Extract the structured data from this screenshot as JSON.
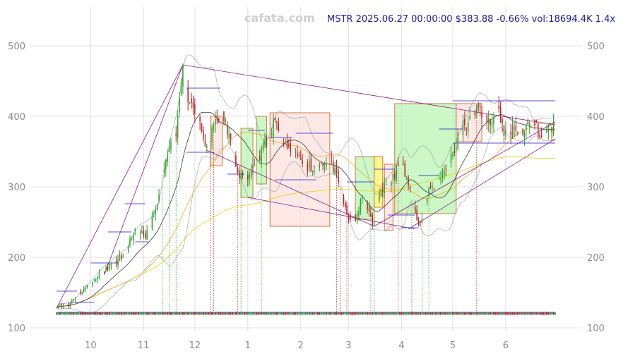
{
  "header": {
    "watermark": "cafata.com",
    "info": "MSTR 2025.06.27 00:00:00 $383.88 -0.66% vol:18694.4K 1.4x"
  },
  "colors": {
    "up": "#2ca02c",
    "down": "#b22222",
    "ma_fast": "#222222",
    "ma_mid": "#f5a623",
    "ma_slow": "#f0d000",
    "band": "#999999",
    "channel": "#8b1a8b",
    "level": "#1a1acc",
    "box_green": "#b9f5b3",
    "box_red": "#fbe0dc",
    "box_yellow": "#fff36a",
    "box_border": "#d07a3a",
    "grid": "#e0e0e0"
  },
  "chart_data": {
    "type": "candlestick",
    "ticker": "MSTR",
    "y_range": [
      95,
      555
    ],
    "y_ticks": [
      100,
      200,
      300,
      400,
      500
    ],
    "x_ticks": [
      {
        "label": "10",
        "day": 20
      },
      {
        "label": "11",
        "day": 51
      },
      {
        "label": "12",
        "day": 81
      },
      {
        "label": "1",
        "day": 112
      },
      {
        "label": "2",
        "day": 143
      },
      {
        "label": "3",
        "day": 171
      },
      {
        "label": "4",
        "day": 202
      },
      {
        "label": "5",
        "day": 232
      },
      {
        "label": "6",
        "day": 263
      }
    ],
    "day_range": [
      0,
      292
    ],
    "keypoints": [
      {
        "day": 0,
        "close": 128
      },
      {
        "day": 8,
        "close": 135
      },
      {
        "day": 16,
        "close": 155
      },
      {
        "day": 24,
        "close": 172
      },
      {
        "day": 32,
        "close": 190
      },
      {
        "day": 40,
        "close": 205
      },
      {
        "day": 46,
        "close": 240
      },
      {
        "day": 52,
        "close": 228
      },
      {
        "day": 58,
        "close": 268
      },
      {
        "day": 64,
        "close": 338
      },
      {
        "day": 70,
        "close": 372
      },
      {
        "day": 74,
        "close": 473
      },
      {
        "day": 77,
        "close": 420
      },
      {
        "day": 82,
        "close": 400
      },
      {
        "day": 88,
        "close": 358
      },
      {
        "day": 92,
        "close": 388
      },
      {
        "day": 97,
        "close": 402
      },
      {
        "day": 102,
        "close": 368
      },
      {
        "day": 106,
        "close": 320
      },
      {
        "day": 112,
        "close": 310
      },
      {
        "day": 118,
        "close": 338
      },
      {
        "day": 124,
        "close": 372
      },
      {
        "day": 128,
        "close": 395
      },
      {
        "day": 133,
        "close": 360
      },
      {
        "day": 139,
        "close": 345
      },
      {
        "day": 146,
        "close": 330
      },
      {
        "day": 153,
        "close": 326
      },
      {
        "day": 160,
        "close": 340
      },
      {
        "day": 166,
        "close": 300
      },
      {
        "day": 170,
        "close": 262
      },
      {
        "day": 175,
        "close": 252
      },
      {
        "day": 180,
        "close": 292
      },
      {
        "day": 185,
        "close": 246
      },
      {
        "day": 190,
        "close": 296
      },
      {
        "day": 196,
        "close": 306
      },
      {
        "day": 201,
        "close": 340
      },
      {
        "day": 205,
        "close": 312
      },
      {
        "day": 209,
        "close": 268
      },
      {
        "day": 213,
        "close": 250
      },
      {
        "day": 218,
        "close": 298
      },
      {
        "day": 224,
        "close": 312
      },
      {
        "day": 230,
        "close": 338
      },
      {
        "day": 236,
        "close": 375
      },
      {
        "day": 242,
        "close": 400
      },
      {
        "day": 248,
        "close": 412
      },
      {
        "day": 254,
        "close": 388
      },
      {
        "day": 258,
        "close": 418
      },
      {
        "day": 262,
        "close": 372
      },
      {
        "day": 268,
        "close": 383
      },
      {
        "day": 274,
        "close": 378
      },
      {
        "day": 280,
        "close": 388
      },
      {
        "day": 284,
        "close": 370
      },
      {
        "day": 288,
        "close": 386
      },
      {
        "day": 292,
        "close": 384
      }
    ],
    "boxes": [
      {
        "d0": 90,
        "d1": 97,
        "lo": 330,
        "hi": 400,
        "kind": "red"
      },
      {
        "d0": 108,
        "d1": 115,
        "lo": 285,
        "hi": 383,
        "kind": "green"
      },
      {
        "d0": 117,
        "d1": 123,
        "lo": 304,
        "hi": 400,
        "kind": "green"
      },
      {
        "d0": 125,
        "d1": 160,
        "lo": 244,
        "hi": 405,
        "kind": "red"
      },
      {
        "d0": 175,
        "d1": 186,
        "lo": 254,
        "hi": 343,
        "kind": "green"
      },
      {
        "d0": 186,
        "d1": 191,
        "lo": 271,
        "hi": 343,
        "kind": "yellow"
      },
      {
        "d0": 192,
        "d1": 197,
        "lo": 238,
        "hi": 332,
        "kind": "red"
      },
      {
        "d0": 198,
        "d1": 234,
        "lo": 262,
        "hi": 418,
        "kind": "green"
      },
      {
        "d0": 234,
        "d1": 249,
        "lo": 364,
        "hi": 418,
        "kind": "red"
      }
    ],
    "channels": [
      {
        "d0": 0,
        "v0": 128,
        "d1": 74,
        "v1": 473
      },
      {
        "d0": 28,
        "v0": 175,
        "d1": 74,
        "v1": 473
      },
      {
        "d0": 74,
        "v0": 473,
        "d1": 292,
        "v1": 388
      },
      {
        "d0": 88,
        "v0": 352,
        "d1": 186,
        "v1": 244
      },
      {
        "d0": 186,
        "v0": 244,
        "d1": 292,
        "v1": 392
      },
      {
        "d0": 206,
        "v0": 240,
        "d1": 292,
        "v1": 368
      },
      {
        "d0": 112,
        "v0": 285,
        "d1": 210,
        "v1": 240
      }
    ],
    "levels": [
      {
        "d0": 0,
        "d1": 12,
        "v": 152
      },
      {
        "d0": 8,
        "d1": 22,
        "v": 136
      },
      {
        "d0": 20,
        "d1": 36,
        "v": 192
      },
      {
        "d0": 30,
        "d1": 44,
        "v": 236
      },
      {
        "d0": 40,
        "d1": 52,
        "v": 276
      },
      {
        "d0": 46,
        "d1": 54,
        "v": 222
      },
      {
        "d0": 76,
        "d1": 96,
        "v": 440
      },
      {
        "d0": 76,
        "d1": 92,
        "v": 349
      },
      {
        "d0": 100,
        "d1": 110,
        "v": 318
      },
      {
        "d0": 112,
        "d1": 122,
        "v": 380
      },
      {
        "d0": 124,
        "d1": 138,
        "v": 370
      },
      {
        "d0": 128,
        "d1": 152,
        "v": 310
      },
      {
        "d0": 140,
        "d1": 162,
        "v": 376
      },
      {
        "d0": 170,
        "d1": 186,
        "v": 307
      },
      {
        "d0": 186,
        "d1": 198,
        "v": 325
      },
      {
        "d0": 194,
        "d1": 210,
        "v": 260
      },
      {
        "d0": 202,
        "d1": 212,
        "v": 242
      },
      {
        "d0": 212,
        "d1": 224,
        "v": 316
      },
      {
        "d0": 224,
        "d1": 238,
        "v": 382
      },
      {
        "d0": 232,
        "d1": 256,
        "v": 422
      },
      {
        "d0": 232,
        "d1": 256,
        "v": 362
      },
      {
        "d0": 256,
        "d1": 292,
        "v": 422
      },
      {
        "d0": 256,
        "d1": 292,
        "v": 362
      },
      {
        "d0": 0,
        "d1": 292,
        "v": 122
      }
    ],
    "signals": [
      {
        "day": 62,
        "kind": "buy"
      },
      {
        "day": 66,
        "kind": "buy"
      },
      {
        "day": 70,
        "kind": "buy"
      },
      {
        "day": 90,
        "kind": "sell"
      },
      {
        "day": 92,
        "kind": "sell"
      },
      {
        "day": 106,
        "kind": "sell"
      },
      {
        "day": 108,
        "kind": "buy"
      },
      {
        "day": 120,
        "kind": "buy"
      },
      {
        "day": 164,
        "kind": "sell"
      },
      {
        "day": 166,
        "kind": "sell"
      },
      {
        "day": 170,
        "kind": "sell"
      },
      {
        "day": 184,
        "kind": "buy"
      },
      {
        "day": 186,
        "kind": "buy"
      },
      {
        "day": 200,
        "kind": "sell"
      },
      {
        "day": 208,
        "kind": "buy"
      },
      {
        "day": 214,
        "kind": "buy"
      },
      {
        "day": 218,
        "kind": "buy"
      },
      {
        "day": 246,
        "kind": "sell"
      }
    ]
  }
}
